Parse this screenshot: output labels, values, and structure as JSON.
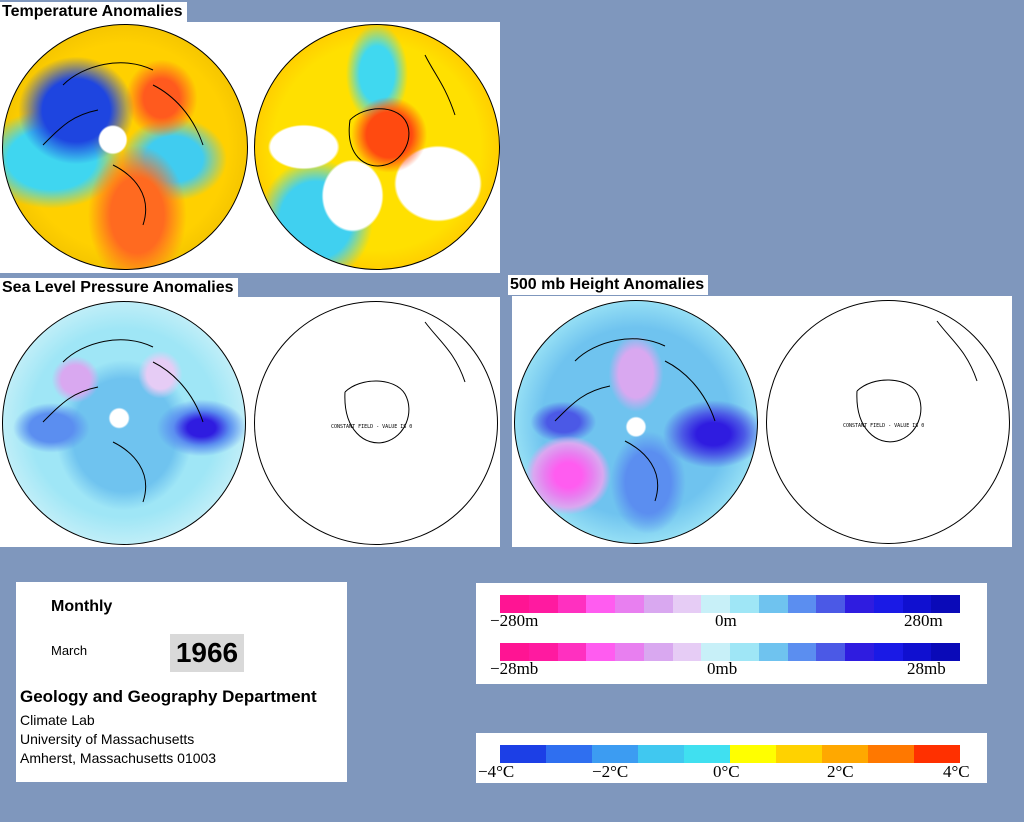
{
  "titles": {
    "temperature": "Temperature Anomalies",
    "slp": "Sea Level Pressure Anomalies",
    "height500": "500 mb Height Anomalies"
  },
  "constant_field_label": "CONSTANT FIELD - VALUE IS 0",
  "info": {
    "period": "Monthly",
    "month": "March",
    "year": "1966",
    "department": "Geology and Geography Department",
    "lab": "Climate Lab",
    "university": "University of Massachusetts",
    "address": "Amherst, Massachusetts 01003"
  },
  "legend_pressure": {
    "height_labels": [
      "−280m",
      "0m",
      "280m"
    ],
    "slp_labels": [
      "−28mb",
      "0mb",
      "28mb"
    ],
    "colors": [
      "#ff1493",
      "#ff1aa0",
      "#ff30c0",
      "#ff5cf0",
      "#e87ff0",
      "#d9a8f0",
      "#e6ccf5",
      "#c8f0f8",
      "#9fe6f6",
      "#6fc3ef",
      "#5b8ef0",
      "#4b59e6",
      "#2f1ce0",
      "#1a1ae6",
      "#1010d0",
      "#0a0ab8"
    ]
  },
  "legend_temp": {
    "labels": [
      "−4°C",
      "−2°C",
      "0°C",
      "2°C",
      "4°C"
    ],
    "colors": [
      "#1c3fe6",
      "#2f6ff0",
      "#3c9cf2",
      "#40c8f0",
      "#40e0f0",
      "#ffff00",
      "#ffd200",
      "#ffa800",
      "#ff7800",
      "#ff3000"
    ]
  }
}
